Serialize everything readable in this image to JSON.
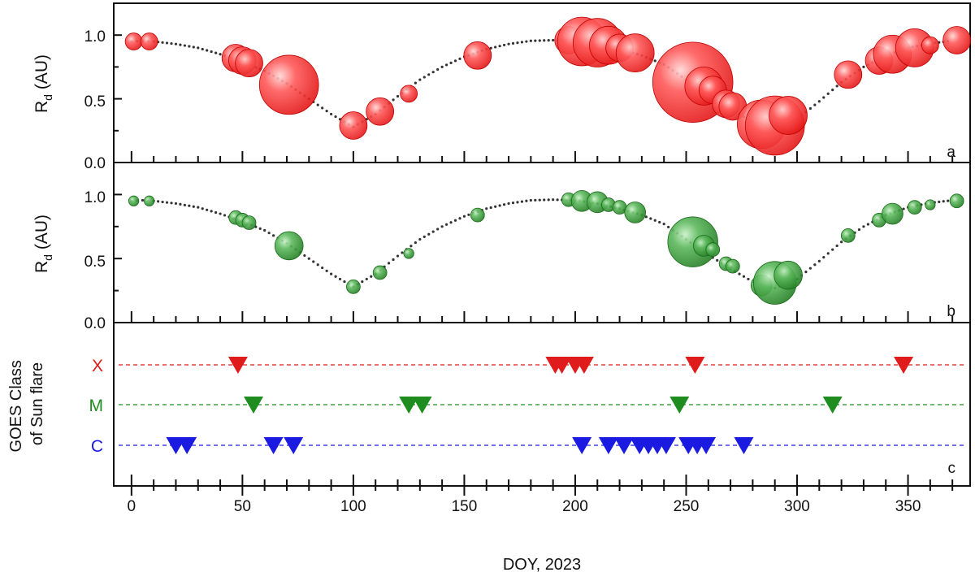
{
  "x_axis": {
    "label": "DOY, 2023",
    "ticks": [
      "0",
      "50",
      "100",
      "150",
      "200",
      "250",
      "300",
      "350"
    ],
    "range": [
      -8,
      378
    ]
  },
  "panels": [
    {
      "letter": "a",
      "ylabel_main": "R",
      "ylabel_sub": "d",
      "ylabel_unit": " (AU)",
      "yticks": [
        "0.0",
        "0.5",
        "1.0"
      ],
      "ylim": [
        0,
        1.25
      ],
      "color": "#ff2a2a"
    },
    {
      "letter": "b",
      "ylabel_main": "R",
      "ylabel_sub": "d",
      "ylabel_unit": " (AU)",
      "yticks": [
        "0.0",
        "0.5",
        "1.0"
      ],
      "ylim": [
        0,
        1.25
      ],
      "color": "#2e9b2e"
    },
    {
      "letter": "c",
      "ylabel_line1": "GOES Class",
      "ylabel_line2": "of Sun flare"
    }
  ],
  "chart_data": [
    {
      "type": "scatter",
      "panel": "a",
      "curve_x": [
        0,
        5,
        10,
        20,
        30,
        40,
        50,
        60,
        70,
        80,
        90,
        100,
        110,
        120,
        130,
        140,
        150,
        160,
        170,
        180,
        190,
        200,
        210,
        220,
        230,
        240,
        250,
        260,
        270,
        280,
        290,
        300,
        310,
        320,
        330,
        340,
        350,
        360,
        370
      ],
      "curve_y": [
        0.95,
        0.955,
        0.95,
        0.93,
        0.9,
        0.85,
        0.79,
        0.72,
        0.62,
        0.5,
        0.38,
        0.28,
        0.38,
        0.52,
        0.65,
        0.75,
        0.83,
        0.89,
        0.93,
        0.955,
        0.96,
        0.955,
        0.93,
        0.89,
        0.84,
        0.77,
        0.65,
        0.53,
        0.42,
        0.32,
        0.27,
        0.34,
        0.48,
        0.63,
        0.75,
        0.84,
        0.9,
        0.935,
        0.955
      ],
      "points": [
        {
          "x": 1,
          "y": 0.95,
          "s": 1
        },
        {
          "x": 8,
          "y": 0.95,
          "s": 1
        },
        {
          "x": 47,
          "y": 0.82,
          "s": 2
        },
        {
          "x": 50,
          "y": 0.8,
          "s": 2
        },
        {
          "x": 53,
          "y": 0.78,
          "s": 2
        },
        {
          "x": 71,
          "y": 0.61,
          "s": 5
        },
        {
          "x": 100,
          "y": 0.29,
          "s": 2
        },
        {
          "x": 112,
          "y": 0.4,
          "s": 2
        },
        {
          "x": 125,
          "y": 0.54,
          "s": 1
        },
        {
          "x": 156,
          "y": 0.84,
          "s": 2
        },
        {
          "x": 197,
          "y": 0.96,
          "s": 2
        },
        {
          "x": 203,
          "y": 0.95,
          "s": 4
        },
        {
          "x": 210,
          "y": 0.94,
          "s": 4
        },
        {
          "x": 215,
          "y": 0.92,
          "s": 3
        },
        {
          "x": 220,
          "y": 0.9,
          "s": 2
        },
        {
          "x": 227,
          "y": 0.86,
          "s": 3
        },
        {
          "x": 253,
          "y": 0.63,
          "s": 7
        },
        {
          "x": 258,
          "y": 0.6,
          "s": 3
        },
        {
          "x": 262,
          "y": 0.57,
          "s": 2
        },
        {
          "x": 268,
          "y": 0.46,
          "s": 2
        },
        {
          "x": 271,
          "y": 0.44,
          "s": 2
        },
        {
          "x": 284,
          "y": 0.3,
          "s": 4
        },
        {
          "x": 290,
          "y": 0.29,
          "s": 5
        },
        {
          "x": 296,
          "y": 0.37,
          "s": 3
        },
        {
          "x": 323,
          "y": 0.69,
          "s": 2
        },
        {
          "x": 337,
          "y": 0.8,
          "s": 2
        },
        {
          "x": 343,
          "y": 0.85,
          "s": 3
        },
        {
          "x": 353,
          "y": 0.9,
          "s": 3
        },
        {
          "x": 360,
          "y": 0.92,
          "s": 1
        },
        {
          "x": 372,
          "y": 0.96,
          "s": 2
        }
      ]
    },
    {
      "type": "scatter",
      "panel": "b",
      "curve_x": [
        0,
        5,
        10,
        20,
        30,
        40,
        50,
        60,
        70,
        80,
        90,
        100,
        110,
        120,
        130,
        140,
        150,
        160,
        170,
        180,
        190,
        200,
        210,
        220,
        230,
        240,
        250,
        260,
        270,
        280,
        290,
        300,
        310,
        320,
        330,
        340,
        350,
        360,
        370
      ],
      "curve_y": [
        0.95,
        0.955,
        0.95,
        0.93,
        0.9,
        0.85,
        0.79,
        0.72,
        0.62,
        0.5,
        0.38,
        0.28,
        0.38,
        0.52,
        0.65,
        0.75,
        0.83,
        0.89,
        0.93,
        0.955,
        0.96,
        0.955,
        0.93,
        0.89,
        0.84,
        0.77,
        0.65,
        0.53,
        0.42,
        0.32,
        0.27,
        0.34,
        0.48,
        0.63,
        0.75,
        0.84,
        0.9,
        0.935,
        0.955
      ],
      "points": [
        {
          "x": 1,
          "y": 0.95,
          "s": 0.5
        },
        {
          "x": 8,
          "y": 0.95,
          "s": 0.5
        },
        {
          "x": 47,
          "y": 0.82,
          "s": 1
        },
        {
          "x": 50,
          "y": 0.8,
          "s": 1
        },
        {
          "x": 53,
          "y": 0.78,
          "s": 1
        },
        {
          "x": 71,
          "y": 0.6,
          "s": 3
        },
        {
          "x": 100,
          "y": 0.28,
          "s": 1
        },
        {
          "x": 112,
          "y": 0.39,
          "s": 1
        },
        {
          "x": 125,
          "y": 0.54,
          "s": 0.5
        },
        {
          "x": 156,
          "y": 0.84,
          "s": 1
        },
        {
          "x": 197,
          "y": 0.96,
          "s": 1
        },
        {
          "x": 203,
          "y": 0.95,
          "s": 2
        },
        {
          "x": 210,
          "y": 0.94,
          "s": 2
        },
        {
          "x": 215,
          "y": 0.92,
          "s": 1
        },
        {
          "x": 220,
          "y": 0.9,
          "s": 1
        },
        {
          "x": 227,
          "y": 0.86,
          "s": 2
        },
        {
          "x": 253,
          "y": 0.63,
          "s": 6
        },
        {
          "x": 258,
          "y": 0.6,
          "s": 2
        },
        {
          "x": 262,
          "y": 0.57,
          "s": 1
        },
        {
          "x": 268,
          "y": 0.46,
          "s": 1
        },
        {
          "x": 271,
          "y": 0.44,
          "s": 1
        },
        {
          "x": 284,
          "y": 0.29,
          "s": 2
        },
        {
          "x": 290,
          "y": 0.31,
          "s": 5
        },
        {
          "x": 296,
          "y": 0.37,
          "s": 3
        },
        {
          "x": 323,
          "y": 0.68,
          "s": 1
        },
        {
          "x": 337,
          "y": 0.8,
          "s": 1
        },
        {
          "x": 343,
          "y": 0.85,
          "s": 2
        },
        {
          "x": 353,
          "y": 0.9,
          "s": 1
        },
        {
          "x": 360,
          "y": 0.92,
          "s": 0.5
        },
        {
          "x": 372,
          "y": 0.95,
          "s": 1
        }
      ]
    },
    {
      "type": "scatter",
      "panel": "c",
      "categories": [
        "X",
        "M",
        "C"
      ],
      "series": [
        {
          "name": "X",
          "color": "#e01b1b",
          "x": [
            48,
            191,
            194,
            200,
            204,
            254,
            348
          ]
        },
        {
          "name": "M",
          "color": "#1e8c1e",
          "x": [
            55,
            125,
            131,
            247,
            316
          ]
        },
        {
          "name": "C",
          "color": "#1a1ae0",
          "x": [
            20,
            25,
            64,
            73,
            203,
            215,
            222,
            229,
            233,
            237,
            241,
            251,
            255,
            259,
            276
          ]
        }
      ]
    }
  ]
}
